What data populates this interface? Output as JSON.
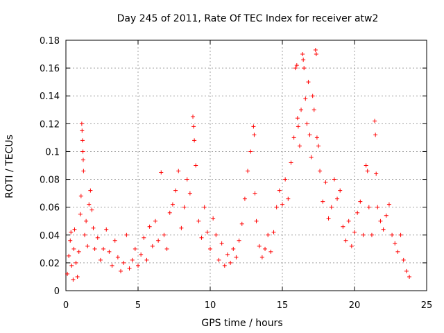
{
  "chart_data": {
    "type": "scatter",
    "title": "Day 245 of 2011, Rate Of TEC Index for receiver atw2",
    "xlabel": "GPS time / hours",
    "ylabel": "ROTI / TECUs",
    "xlim": [
      0,
      25
    ],
    "ylim": [
      0,
      0.18
    ],
    "x_ticks": [
      0,
      5,
      10,
      15,
      20,
      25
    ],
    "x_tick_labels": [
      "0",
      "5",
      "10",
      "15",
      "20",
      "25"
    ],
    "y_ticks": [
      0,
      0.02,
      0.04,
      0.06,
      0.08,
      0.1,
      0.12,
      0.14,
      0.16,
      0.18
    ],
    "y_tick_labels": [
      "0",
      "0.02",
      "0.04",
      "0.06",
      "0.08",
      "0.1",
      "0.12",
      "0.14",
      "0.16",
      "0.18"
    ],
    "grid": true,
    "marker": "+",
    "color": "#ff0000",
    "series": [
      {
        "name": "ROTI",
        "points": [
          [
            0.1,
            0.012
          ],
          [
            0.2,
            0.025
          ],
          [
            0.3,
            0.036
          ],
          [
            0.35,
            0.042
          ],
          [
            0.4,
            0.018
          ],
          [
            0.5,
            0.008
          ],
          [
            0.55,
            0.03
          ],
          [
            0.6,
            0.044
          ],
          [
            0.7,
            0.02
          ],
          [
            0.8,
            0.01
          ],
          [
            0.9,
            0.028
          ],
          [
            1.0,
            0.055
          ],
          [
            1.05,
            0.068
          ],
          [
            1.1,
            0.12
          ],
          [
            1.12,
            0.115
          ],
          [
            1.15,
            0.108
          ],
          [
            1.18,
            0.1
          ],
          [
            1.2,
            0.094
          ],
          [
            1.22,
            0.086
          ],
          [
            1.3,
            0.04
          ],
          [
            1.4,
            0.05
          ],
          [
            1.5,
            0.032
          ],
          [
            1.6,
            0.062
          ],
          [
            1.7,
            0.072
          ],
          [
            1.8,
            0.058
          ],
          [
            1.9,
            0.045
          ],
          [
            2.0,
            0.03
          ],
          [
            2.2,
            0.038
          ],
          [
            2.4,
            0.022
          ],
          [
            2.6,
            0.03
          ],
          [
            2.8,
            0.044
          ],
          [
            3.0,
            0.028
          ],
          [
            3.2,
            0.018
          ],
          [
            3.4,
            0.036
          ],
          [
            3.6,
            0.024
          ],
          [
            3.8,
            0.014
          ],
          [
            4.0,
            0.02
          ],
          [
            4.2,
            0.04
          ],
          [
            4.4,
            0.016
          ],
          [
            4.6,
            0.022
          ],
          [
            4.8,
            0.03
          ],
          [
            5.0,
            0.018
          ],
          [
            5.2,
            0.026
          ],
          [
            5.4,
            0.038
          ],
          [
            5.6,
            0.022
          ],
          [
            5.8,
            0.046
          ],
          [
            6.0,
            0.032
          ],
          [
            6.2,
            0.05
          ],
          [
            6.4,
            0.036
          ],
          [
            6.6,
            0.085
          ],
          [
            6.8,
            0.04
          ],
          [
            7.0,
            0.03
          ],
          [
            7.2,
            0.056
          ],
          [
            7.4,
            0.062
          ],
          [
            7.6,
            0.072
          ],
          [
            7.8,
            0.086
          ],
          [
            8.0,
            0.045
          ],
          [
            8.2,
            0.06
          ],
          [
            8.4,
            0.08
          ],
          [
            8.6,
            0.07
          ],
          [
            8.8,
            0.125
          ],
          [
            8.85,
            0.118
          ],
          [
            8.9,
            0.108
          ],
          [
            9.0,
            0.09
          ],
          [
            9.2,
            0.05
          ],
          [
            9.4,
            0.038
          ],
          [
            9.6,
            0.06
          ],
          [
            9.8,
            0.042
          ],
          [
            10.0,
            0.03
          ],
          [
            10.2,
            0.052
          ],
          [
            10.4,
            0.04
          ],
          [
            10.6,
            0.022
          ],
          [
            10.8,
            0.034
          ],
          [
            11.0,
            0.018
          ],
          [
            11.2,
            0.026
          ],
          [
            11.4,
            0.02
          ],
          [
            11.6,
            0.03
          ],
          [
            11.8,
            0.024
          ],
          [
            12.0,
            0.036
          ],
          [
            12.2,
            0.048
          ],
          [
            12.4,
            0.066
          ],
          [
            12.6,
            0.086
          ],
          [
            12.8,
            0.1
          ],
          [
            13.0,
            0.118
          ],
          [
            13.05,
            0.112
          ],
          [
            13.1,
            0.07
          ],
          [
            13.2,
            0.05
          ],
          [
            13.4,
            0.032
          ],
          [
            13.6,
            0.024
          ],
          [
            13.8,
            0.03
          ],
          [
            14.0,
            0.04
          ],
          [
            14.2,
            0.028
          ],
          [
            14.4,
            0.042
          ],
          [
            14.6,
            0.06
          ],
          [
            14.8,
            0.072
          ],
          [
            15.0,
            0.062
          ],
          [
            15.2,
            0.08
          ],
          [
            15.4,
            0.066
          ],
          [
            15.6,
            0.092
          ],
          [
            15.8,
            0.11
          ],
          [
            15.9,
            0.16
          ],
          [
            16.0,
            0.162
          ],
          [
            16.05,
            0.124
          ],
          [
            16.1,
            0.118
          ],
          [
            16.2,
            0.104
          ],
          [
            16.3,
            0.13
          ],
          [
            16.4,
            0.17
          ],
          [
            16.45,
            0.166
          ],
          [
            16.5,
            0.16
          ],
          [
            16.6,
            0.138
          ],
          [
            16.7,
            0.12
          ],
          [
            16.8,
            0.15
          ],
          [
            16.9,
            0.112
          ],
          [
            17.0,
            0.096
          ],
          [
            17.1,
            0.14
          ],
          [
            17.2,
            0.13
          ],
          [
            17.3,
            0.173
          ],
          [
            17.35,
            0.17
          ],
          [
            17.4,
            0.11
          ],
          [
            17.5,
            0.104
          ],
          [
            17.6,
            0.086
          ],
          [
            17.8,
            0.064
          ],
          [
            18.0,
            0.078
          ],
          [
            18.2,
            0.052
          ],
          [
            18.4,
            0.06
          ],
          [
            18.6,
            0.08
          ],
          [
            18.8,
            0.066
          ],
          [
            19.0,
            0.072
          ],
          [
            19.2,
            0.046
          ],
          [
            19.4,
            0.036
          ],
          [
            19.6,
            0.05
          ],
          [
            19.8,
            0.032
          ],
          [
            20.0,
            0.042
          ],
          [
            20.2,
            0.056
          ],
          [
            20.4,
            0.064
          ],
          [
            20.6,
            0.04
          ],
          [
            20.8,
            0.09
          ],
          [
            20.9,
            0.086
          ],
          [
            21.0,
            0.06
          ],
          [
            21.2,
            0.04
          ],
          [
            21.4,
            0.122
          ],
          [
            21.45,
            0.112
          ],
          [
            21.5,
            0.084
          ],
          [
            21.6,
            0.06
          ],
          [
            21.8,
            0.05
          ],
          [
            22.0,
            0.044
          ],
          [
            22.2,
            0.054
          ],
          [
            22.4,
            0.062
          ],
          [
            22.6,
            0.04
          ],
          [
            22.8,
            0.034
          ],
          [
            23.0,
            0.028
          ],
          [
            23.2,
            0.04
          ],
          [
            23.4,
            0.022
          ],
          [
            23.6,
            0.014
          ],
          [
            23.8,
            0.01
          ]
        ]
      }
    ]
  }
}
